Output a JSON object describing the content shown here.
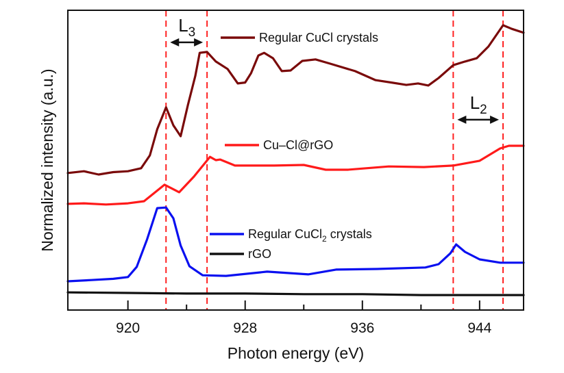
{
  "chart_data": {
    "type": "line",
    "title": "",
    "xlabel": "Photon energy (eV)",
    "ylabel": "Normalized intensity (a.u.)",
    "xlim": [
      915.9,
      947.0
    ],
    "ylim": [
      0,
      100
    ],
    "xticks": [
      920,
      928,
      936,
      944
    ],
    "xtick_labels": [
      "920",
      "928",
      "936",
      "944"
    ],
    "minor_xticks": [
      924,
      932,
      940
    ],
    "yticks": [],
    "grid": false,
    "legend": "inline-center",
    "series": [
      {
        "name": "Regular CuCl crystals",
        "color": "#7a0a0a",
        "x": [
          915.9,
          917.0,
          918.0,
          919.0,
          920.0,
          920.9,
          921.5,
          922.0,
          922.6,
          923.1,
          923.6,
          924.1,
          924.6,
          924.9,
          925.4,
          926.0,
          926.8,
          927.5,
          928.0,
          928.4,
          928.9,
          929.3,
          929.9,
          930.5,
          931.1,
          931.9,
          932.8,
          933.8,
          935.5,
          936.9,
          938.1,
          939.0,
          939.8,
          940.5,
          941.2,
          942.2,
          943.0,
          943.8,
          944.6,
          945.6,
          946.2,
          947.0
        ],
        "y": [
          45.7,
          46.3,
          45.2,
          46.0,
          46.3,
          47.3,
          51.6,
          60.3,
          67.6,
          61.6,
          58.0,
          68.5,
          78.1,
          85.8,
          86.1,
          82.9,
          80.4,
          75.6,
          75.9,
          79.0,
          84.9,
          85.8,
          84.0,
          79.7,
          79.9,
          83.1,
          83.6,
          82.2,
          79.7,
          76.7,
          75.8,
          75.1,
          75.6,
          74.9,
          77.4,
          81.7,
          82.9,
          84.0,
          87.9,
          95.0,
          93.8,
          92.5
        ]
      },
      {
        "name": "Cu–Cl@rGO",
        "color": "#ff1a1a",
        "x": [
          915.9,
          917.0,
          918.5,
          920.0,
          921.1,
          922.5,
          923.5,
          924.5,
          925.6,
          926.0,
          926.3,
          927.3,
          928.5,
          930.0,
          932.0,
          933.5,
          935.0,
          937.8,
          940.2,
          942.2,
          944.0,
          945.4,
          946.0,
          947.0
        ],
        "y": [
          35.4,
          35.6,
          35.2,
          35.6,
          36.3,
          41.8,
          39.3,
          44.5,
          51.1,
          50.0,
          50.2,
          48.2,
          48.2,
          48.2,
          48.4,
          46.8,
          46.8,
          47.9,
          47.7,
          48.2,
          49.8,
          53.9,
          54.8,
          54.8
        ]
      },
      {
        "name": "Regular CuCl₂ crystals",
        "color": "#0a10f0",
        "x": [
          915.9,
          917.5,
          919.0,
          920.0,
          920.6,
          921.3,
          922.0,
          922.6,
          923.1,
          923.6,
          924.2,
          925.1,
          926.7,
          929.5,
          932.3,
          934.2,
          937.0,
          940.3,
          941.2,
          942.0,
          942.4,
          943.0,
          944.0,
          945.4,
          947.0
        ],
        "y": [
          9.6,
          10.0,
          10.4,
          11.0,
          14.4,
          23.5,
          34.0,
          34.2,
          30.6,
          21.5,
          14.6,
          11.6,
          11.4,
          12.8,
          11.9,
          13.5,
          13.7,
          14.2,
          15.3,
          18.9,
          21.9,
          19.4,
          16.9,
          15.8,
          15.8
        ]
      },
      {
        "name": "rGO",
        "color": "#111111",
        "x": [
          915.9,
          920.0,
          924.0,
          928.0,
          932.0,
          936.0,
          940.0,
          944.0,
          947.0
        ],
        "y": [
          5.9,
          5.7,
          5.5,
          5.5,
          5.3,
          5.3,
          5.0,
          5.0,
          5.0
        ]
      }
    ],
    "reference_lines": [
      {
        "x": 922.6,
        "style": "dashed",
        "color": "#ff2020"
      },
      {
        "x": 925.4,
        "style": "dashed",
        "color": "#ff2020"
      },
      {
        "x": 942.2,
        "style": "dashed",
        "color": "#ff2020"
      },
      {
        "x": 945.6,
        "style": "dashed",
        "color": "#ff2020"
      }
    ],
    "annotations": [
      {
        "label": "L",
        "sub": "3",
        "from": 922.6,
        "to": 925.4,
        "type": "double-arrow",
        "y": 89.3
      },
      {
        "label": "L",
        "sub": "2",
        "from": 942.2,
        "to": 945.6,
        "type": "double-arrow",
        "y": 63.5
      }
    ]
  },
  "legend": [
    {
      "series": 0,
      "label": "Regular CuCl crystals",
      "sub": "",
      "suffix": ""
    },
    {
      "series": 1,
      "label": "Cu–Cl@rGO",
      "sub": "",
      "suffix": ""
    },
    {
      "series": 2,
      "label": "Regular CuCl",
      "sub": "2",
      "suffix": " crystals"
    },
    {
      "series": 3,
      "label": "rGO",
      "sub": "",
      "suffix": ""
    }
  ]
}
